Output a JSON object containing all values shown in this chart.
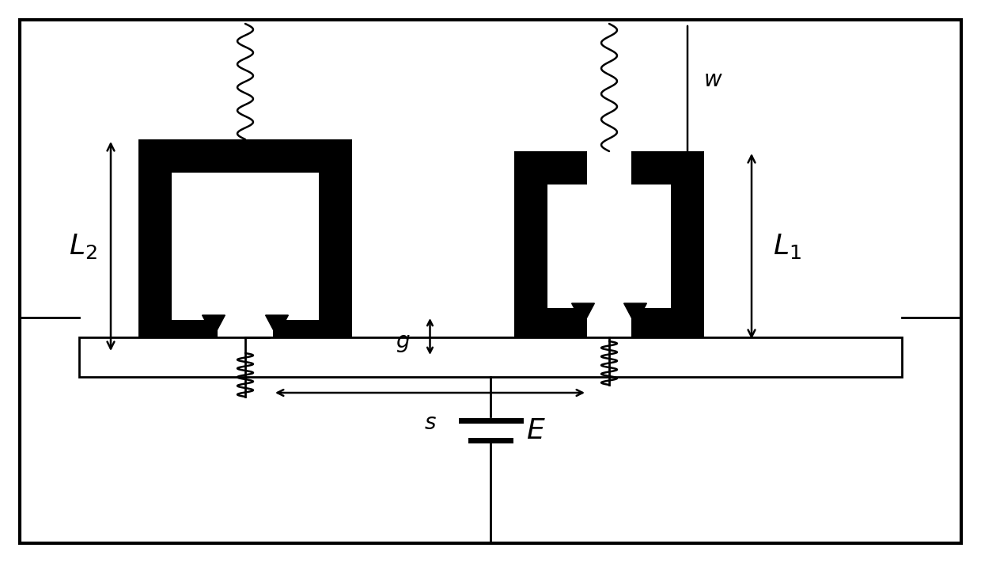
{
  "bg_color": "#ffffff",
  "black": "#000000",
  "fig_width": 12.4,
  "fig_height": 7.11,
  "dpi": 100
}
